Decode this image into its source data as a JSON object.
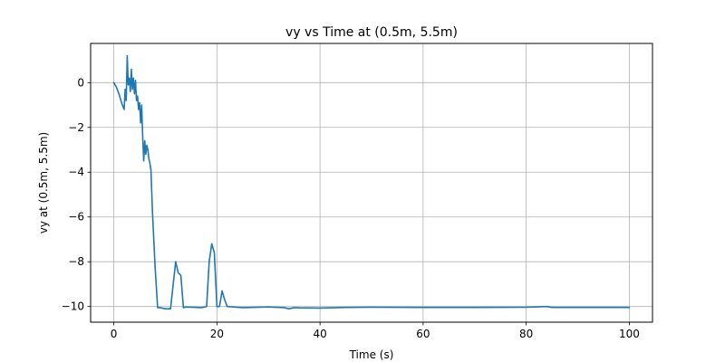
{
  "chart_data": {
    "type": "line",
    "title": "vy vs Time at (0.5m, 5.5m)",
    "xlabel": "Time (s)",
    "ylabel": "vy at (0.5m, 5.5m)",
    "xlim": [
      -4.5,
      104.5
    ],
    "ylim": [
      -10.7,
      1.75
    ],
    "xticks": [
      0,
      20,
      40,
      60,
      80,
      100
    ],
    "yticks": [
      0,
      -2,
      -4,
      -6,
      -8,
      -10
    ],
    "xtick_labels": [
      "0",
      "20",
      "40",
      "60",
      "80",
      "100"
    ],
    "ytick_labels": [
      "0",
      "−2",
      "−4",
      "−6",
      "−8",
      "−10"
    ],
    "grid": true,
    "line_color": "#1f77b4",
    "series": [
      {
        "x": [
          0,
          0.5,
          1,
          1.5,
          2,
          2.2,
          2.4,
          2.6,
          2.8,
          3.0,
          3.2,
          3.4,
          3.6,
          3.8,
          4.0,
          4.2,
          4.4,
          4.6,
          4.8,
          5.0,
          5.2,
          5.4,
          5.6,
          5.8,
          6.0,
          6.2,
          6.4,
          6.6,
          6.8,
          7.0,
          7.2,
          7.5,
          8.0,
          8.5,
          9.0,
          9.5,
          10,
          11,
          12,
          12.5,
          13,
          13.5,
          14,
          15,
          16,
          17,
          18,
          18.5,
          19,
          19.5,
          20,
          20.5,
          21,
          21.5,
          22,
          25,
          30,
          32,
          33,
          34,
          35,
          36,
          40,
          45,
          50,
          60,
          70,
          80,
          84,
          85,
          90,
          100
        ],
        "y": [
          0,
          -0.2,
          -0.5,
          -0.9,
          -1.2,
          -0.3,
          -0.8,
          1.2,
          -0.1,
          0.2,
          -0.4,
          0.6,
          -0.3,
          0.2,
          -0.5,
          0.1,
          -0.8,
          -0.6,
          -1.2,
          -0.9,
          -1.8,
          -1.0,
          -2.4,
          -3.5,
          -2.6,
          -3.2,
          -2.8,
          -3.0,
          -3.4,
          -3.6,
          -3.9,
          -5.8,
          -8.2,
          -10.05,
          -10.05,
          -10.08,
          -10.1,
          -10.1,
          -8.0,
          -8.5,
          -8.6,
          -10.05,
          -10.02,
          -10.03,
          -10.04,
          -10.05,
          -10.0,
          -8.0,
          -7.2,
          -7.6,
          -10.0,
          -10.0,
          -9.3,
          -9.7,
          -10.0,
          -10.05,
          -10.02,
          -10.04,
          -10.05,
          -10.1,
          -10.05,
          -10.06,
          -10.07,
          -10.04,
          -10.03,
          -10.04,
          -10.04,
          -10.03,
          -10.0,
          -10.04,
          -10.04,
          -10.04
        ]
      }
    ]
  }
}
